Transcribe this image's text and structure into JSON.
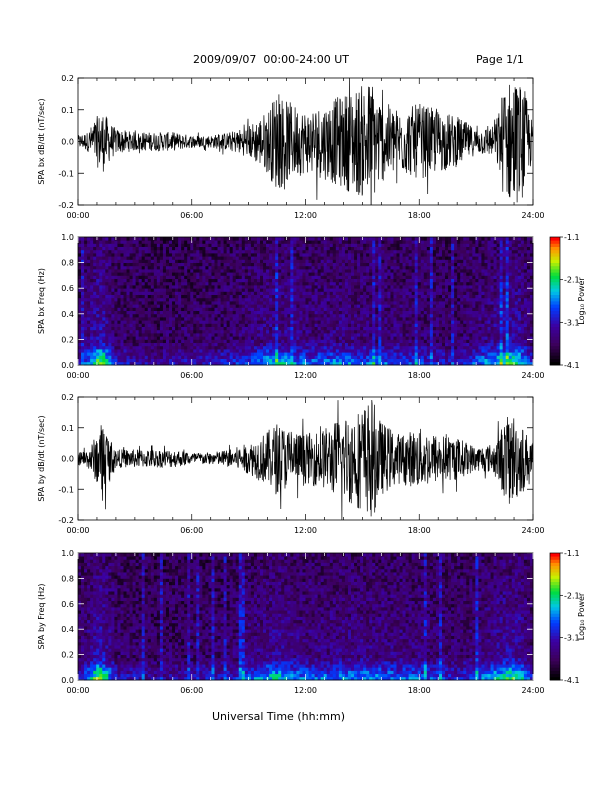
{
  "header": {
    "title": "2009/09/07  00:00-24:00 UT",
    "page": "Page 1/1"
  },
  "xaxis": {
    "label": "Universal Time (hh:mm)"
  },
  "chart_data": [
    {
      "type": "line",
      "ylabel": "SPA bx dB/dt (nT/sec)",
      "xlim": [
        0,
        24
      ],
      "ylim": [
        -0.2,
        0.2
      ],
      "xticks": [
        "00:00",
        "06:00",
        "12:00",
        "18:00",
        "24:00"
      ],
      "yticks": [
        "0.2",
        "0.1",
        "0.0",
        "-0.1",
        "-0.2"
      ],
      "envelope_hours": [
        0,
        0.5,
        1,
        1.3,
        1.7,
        2,
        3,
        4,
        5,
        6,
        7,
        8,
        9,
        10,
        10.5,
        11,
        12,
        13,
        14,
        15,
        15.5,
        16,
        17,
        18,
        19,
        20,
        21,
        22,
        22.5,
        23,
        23.5,
        24
      ],
      "envelope_amp": [
        0.02,
        0.03,
        0.08,
        0.1,
        0.06,
        0.04,
        0.03,
        0.03,
        0.03,
        0.02,
        0.02,
        0.03,
        0.05,
        0.1,
        0.16,
        0.13,
        0.1,
        0.12,
        0.15,
        0.18,
        0.2,
        0.13,
        0.1,
        0.12,
        0.1,
        0.08,
        0.04,
        0.05,
        0.19,
        0.2,
        0.18,
        0.05
      ]
    },
    {
      "type": "heatmap",
      "ylabel": "SPA bx Freq (Hz)",
      "xlim": [
        0,
        24
      ],
      "ylim": [
        0,
        1.0
      ],
      "xticks": [
        "00:00",
        "06:00",
        "12:00",
        "18:00",
        "24:00"
      ],
      "yticks": [
        "1.0",
        "0.8",
        "0.6",
        "0.4",
        "0.2",
        "0.0"
      ],
      "colorbar": {
        "label": "Log₁₀ Power",
        "ticks": [
          "-1.1",
          "-2.1",
          "-3.1",
          "-4.1"
        ],
        "range": [
          -4.1,
          -1.1
        ]
      },
      "activity_hours": [
        0,
        1,
        1.3,
        2,
        4,
        8,
        10.5,
        12,
        14,
        16,
        18,
        20,
        22.5,
        23.2,
        24
      ],
      "activity_level": [
        0.2,
        0.8,
        0.85,
        0.3,
        0.2,
        0.3,
        0.6,
        0.45,
        0.5,
        0.45,
        0.35,
        0.25,
        0.7,
        0.75,
        0.3
      ]
    },
    {
      "type": "line",
      "ylabel": "SPA by dB/dt (nT/sec)",
      "xlim": [
        0,
        24
      ],
      "ylim": [
        -0.2,
        0.2
      ],
      "xticks": [
        "00:00",
        "06:00",
        "12:00",
        "18:00",
        "24:00"
      ],
      "yticks": [
        "0.2",
        "0.1",
        "0.0",
        "-0.1",
        "-0.2"
      ],
      "envelope_hours": [
        0,
        0.5,
        1,
        1.3,
        1.7,
        2,
        3,
        4,
        5,
        6,
        7,
        8,
        9,
        10,
        10.5,
        11,
        12,
        13,
        14,
        15,
        15.5,
        16,
        17,
        18,
        19,
        20,
        21,
        22,
        22.5,
        23,
        23.5,
        24
      ],
      "envelope_amp": [
        0.02,
        0.03,
        0.08,
        0.13,
        0.06,
        0.03,
        0.03,
        0.03,
        0.03,
        0.02,
        0.02,
        0.03,
        0.05,
        0.09,
        0.12,
        0.1,
        0.08,
        0.1,
        0.14,
        0.17,
        0.2,
        0.12,
        0.08,
        0.1,
        0.08,
        0.07,
        0.04,
        0.05,
        0.13,
        0.15,
        0.1,
        0.05
      ]
    },
    {
      "type": "heatmap",
      "ylabel": "SPA by Freq (Hz)",
      "xlim": [
        0,
        24
      ],
      "ylim": [
        0,
        1.0
      ],
      "xticks": [
        "00:00",
        "06:00",
        "12:00",
        "18:00",
        "24:00"
      ],
      "yticks": [
        "1.0",
        "0.8",
        "0.6",
        "0.4",
        "0.2",
        "0.0"
      ],
      "colorbar": {
        "label": "Log₁₀ Power",
        "ticks": [
          "-1.1",
          "-2.1",
          "-3.1",
          "-4.1"
        ],
        "range": [
          -4.1,
          -1.1
        ]
      },
      "activity_hours": [
        0,
        1,
        1.3,
        2,
        4,
        8,
        10.5,
        12,
        14,
        16,
        18,
        20,
        22.5,
        23.2,
        24
      ],
      "activity_level": [
        0.2,
        0.8,
        0.85,
        0.3,
        0.2,
        0.3,
        0.65,
        0.45,
        0.5,
        0.5,
        0.45,
        0.3,
        0.7,
        0.75,
        0.3
      ]
    }
  ]
}
